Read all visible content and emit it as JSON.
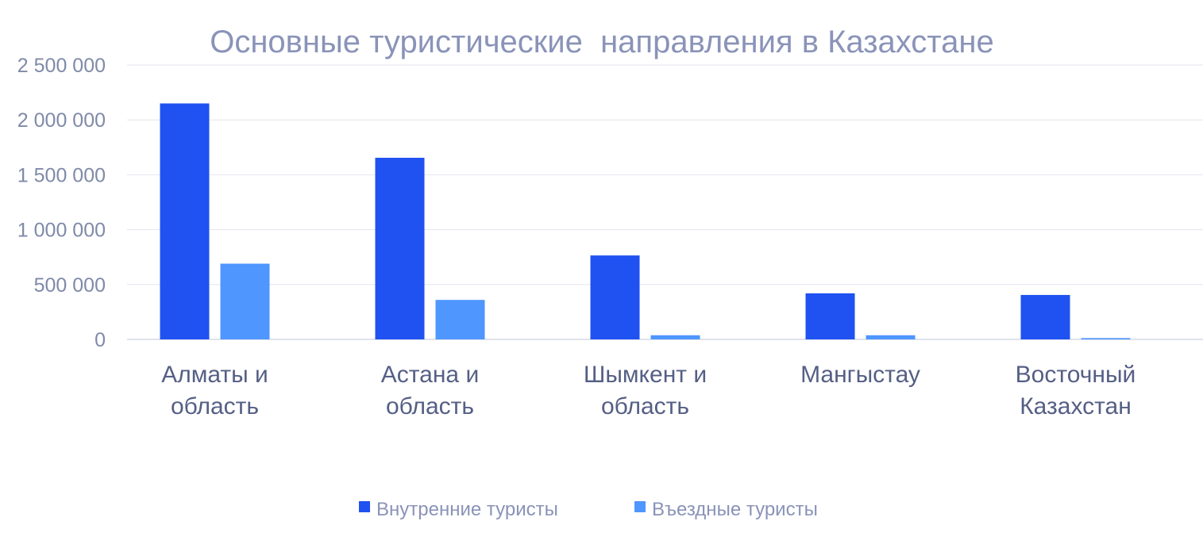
{
  "chart_data": {
    "type": "bar",
    "title": "Основные туристические  направления в Казахстане",
    "categories": [
      [
        "Алматы и",
        "область"
      ],
      [
        "Астана и",
        "область"
      ],
      [
        "Шымкент и",
        "область"
      ],
      [
        "Мангыстау"
      ],
      [
        "Восточный",
        "Казахстан"
      ]
    ],
    "series": [
      {
        "name": "Внутренние туристы",
        "color": "#1f52f0",
        "values": [
          2150000,
          1655000,
          765000,
          420000,
          405000
        ]
      },
      {
        "name": "Въездные туристы",
        "color": "#4f96ff",
        "values": [
          690000,
          360000,
          38000,
          38000,
          12000
        ]
      }
    ],
    "ylim": [
      0,
      2500000
    ],
    "yticks": [
      {
        "value": 0,
        "label": "0"
      },
      {
        "value": 500000,
        "label": "500 000"
      },
      {
        "value": 1000000,
        "label": "1 000 000"
      },
      {
        "value": 1500000,
        "label": "1 500 000"
      },
      {
        "value": 2000000,
        "label": "2 000 000"
      },
      {
        "value": 2500000,
        "label": "2 500 000"
      }
    ],
    "grid": true,
    "legend": "bottom"
  }
}
